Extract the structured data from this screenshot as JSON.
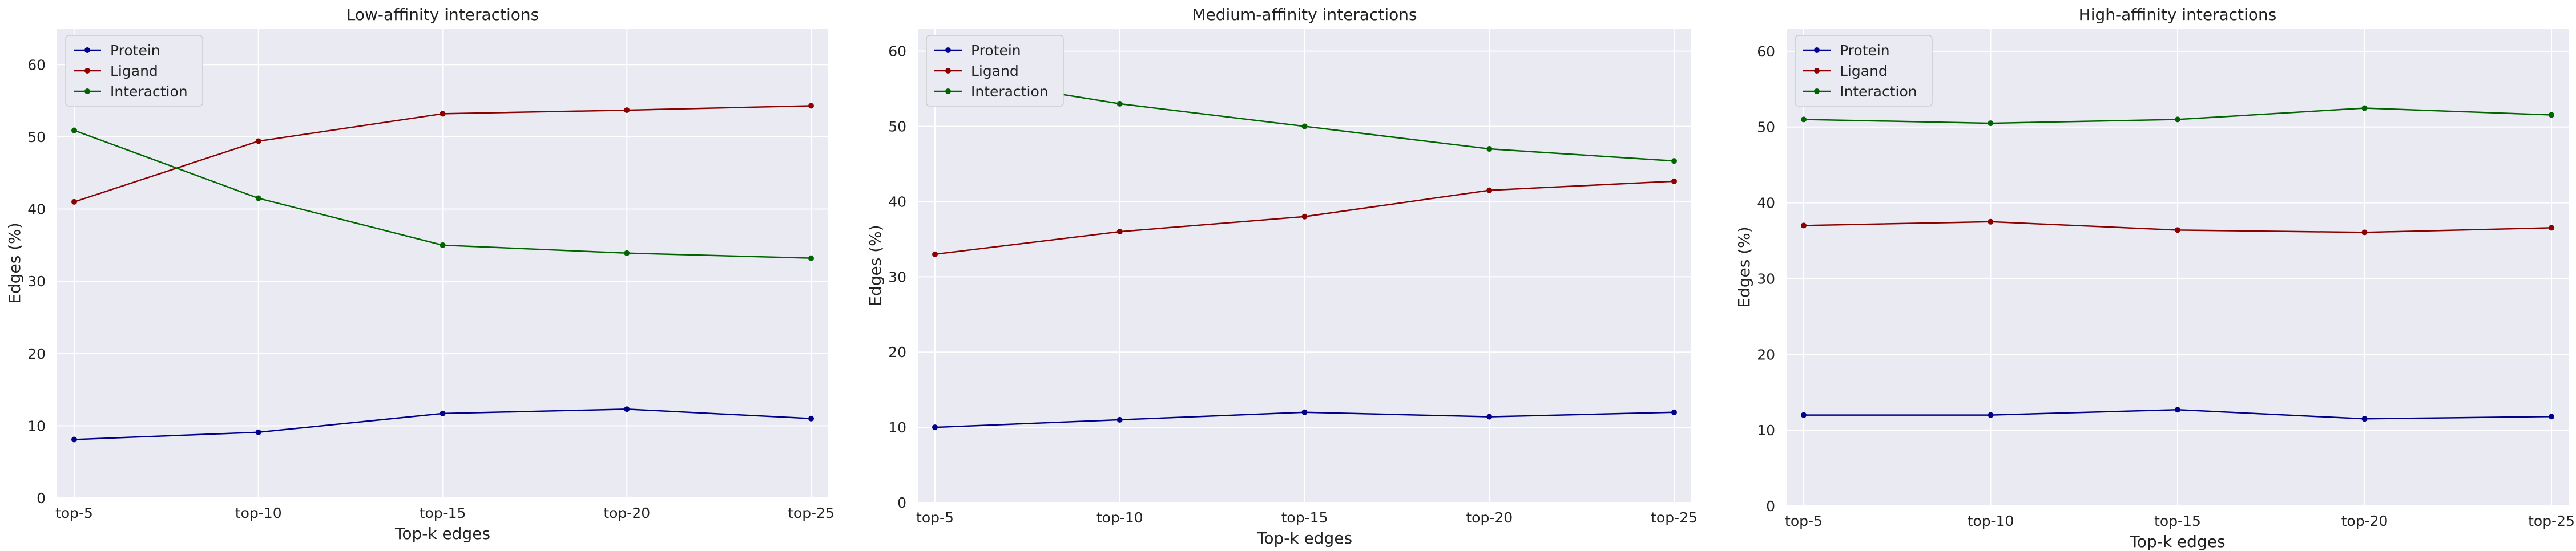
{
  "chart_data": [
    {
      "type": "line",
      "title": "Low-affinity interactions",
      "xlabel": "Top-k edges",
      "ylabel": "Edges (%)",
      "categories": [
        "top-5",
        "top-10",
        "top-15",
        "top-20",
        "top-25"
      ],
      "ylim": [
        0,
        65
      ],
      "yticks": [
        0,
        10,
        20,
        30,
        40,
        50,
        60
      ],
      "grid": true,
      "legend": "top-left",
      "series": [
        {
          "name": "Protein",
          "color": "#00008b",
          "values": [
            8.1,
            9.1,
            11.7,
            12.3,
            11.0
          ]
        },
        {
          "name": "Ligand",
          "color": "#8b0000",
          "values": [
            41.0,
            49.4,
            53.2,
            53.7,
            54.3
          ]
        },
        {
          "name": "Interaction",
          "color": "#006400",
          "values": [
            50.9,
            41.5,
            35.0,
            33.9,
            33.2
          ]
        }
      ]
    },
    {
      "type": "line",
      "title": "Medium-affinity interactions",
      "xlabel": "Top-k edges",
      "ylabel": "Edges (%)",
      "categories": [
        "top-5",
        "top-10",
        "top-15",
        "top-20",
        "top-25"
      ],
      "ylim": [
        0,
        63
      ],
      "yticks": [
        0,
        10,
        20,
        30,
        40,
        50,
        60
      ],
      "grid": true,
      "legend": "top-left",
      "series": [
        {
          "name": "Protein",
          "color": "#00008b",
          "values": [
            10.0,
            11.0,
            12.0,
            11.4,
            12.0
          ]
        },
        {
          "name": "Ligand",
          "color": "#8b0000",
          "values": [
            33.0,
            36.0,
            38.0,
            41.5,
            42.7
          ]
        },
        {
          "name": "Interaction",
          "color": "#006400",
          "values": [
            57.0,
            53.0,
            50.0,
            47.0,
            45.4
          ]
        }
      ]
    },
    {
      "type": "line",
      "title": "High-affinity interactions",
      "xlabel": "Top-k edges",
      "ylabel": "Edges (%)",
      "categories": [
        "top-5",
        "top-10",
        "top-15",
        "top-20",
        "top-25"
      ],
      "ylim": [
        0,
        63
      ],
      "yticks": [
        0,
        10,
        20,
        30,
        40,
        50,
        60
      ],
      "grid": true,
      "legend": "top-left",
      "series": [
        {
          "name": "Protein",
          "color": "#00008b",
          "values": [
            12.0,
            12.0,
            12.7,
            11.5,
            11.8
          ]
        },
        {
          "name": "Ligand",
          "color": "#8b0000",
          "values": [
            37.0,
            37.5,
            36.4,
            36.1,
            36.7
          ]
        },
        {
          "name": "Interaction",
          "color": "#006400",
          "values": [
            51.0,
            50.5,
            51.0,
            52.5,
            51.6
          ]
        }
      ]
    }
  ]
}
